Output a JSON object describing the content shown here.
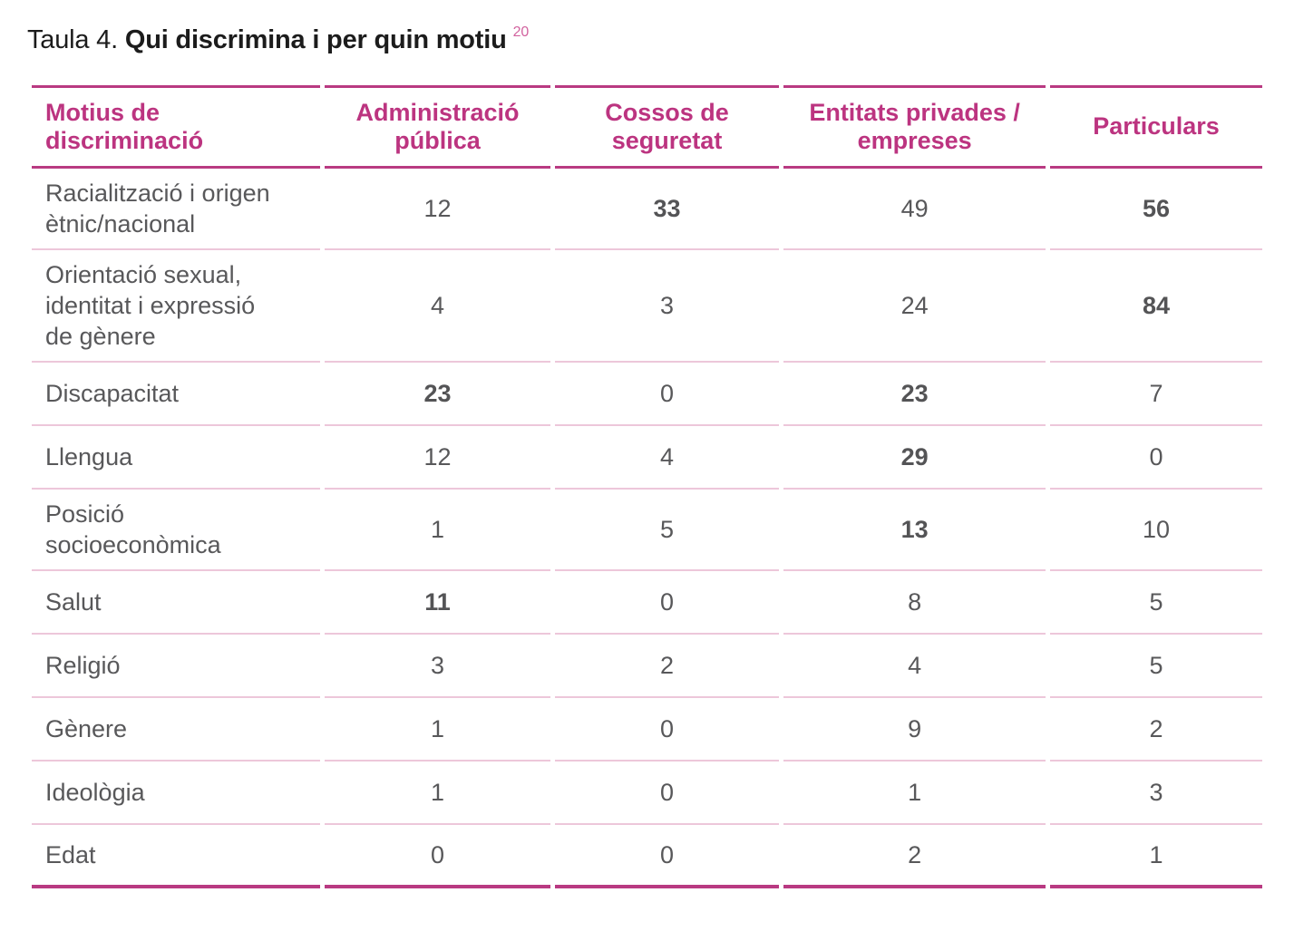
{
  "title": {
    "prefix": "Taula 4.",
    "main": "Qui discrimina i per quin motiu",
    "footnote_ref": "20"
  },
  "colors": {
    "accent_magenta": "#bc3480",
    "border_strong": "#b93a82",
    "border_light": "#edc7da",
    "body_text": "#58585a",
    "title_text": "#1c1c1c",
    "footnote_pink": "#d2639f",
    "background": "#ffffff"
  },
  "table": {
    "header": {
      "motius_label": "Motius de discriminació",
      "columns": [
        "Administració pública",
        "Cossos de seguretat",
        "Entitats privades / empreses",
        "Particulars"
      ]
    },
    "rows": [
      {
        "motiu": "Racialització i origen ètnic/nacional",
        "values": [
          {
            "v": "12",
            "bold": false
          },
          {
            "v": "33",
            "bold": true
          },
          {
            "v": "49",
            "bold": false
          },
          {
            "v": "56",
            "bold": true
          }
        ]
      },
      {
        "motiu": "Orientació sexual, identitat i expressió de gènere",
        "values": [
          {
            "v": "4",
            "bold": false
          },
          {
            "v": "3",
            "bold": false
          },
          {
            "v": "24",
            "bold": false
          },
          {
            "v": "84",
            "bold": true
          }
        ]
      },
      {
        "motiu": "Discapacitat",
        "values": [
          {
            "v": "23",
            "bold": true
          },
          {
            "v": "0",
            "bold": false
          },
          {
            "v": "23",
            "bold": true
          },
          {
            "v": "7",
            "bold": false
          }
        ]
      },
      {
        "motiu": "Llengua",
        "values": [
          {
            "v": "12",
            "bold": false
          },
          {
            "v": "4",
            "bold": false
          },
          {
            "v": "29",
            "bold": true
          },
          {
            "v": "0",
            "bold": false
          }
        ]
      },
      {
        "motiu": "Posició socioeconòmica",
        "values": [
          {
            "v": "1",
            "bold": false
          },
          {
            "v": "5",
            "bold": false
          },
          {
            "v": "13",
            "bold": true
          },
          {
            "v": "10",
            "bold": false
          }
        ]
      },
      {
        "motiu": "Salut",
        "values": [
          {
            "v": "11",
            "bold": true
          },
          {
            "v": "0",
            "bold": false
          },
          {
            "v": "8",
            "bold": false
          },
          {
            "v": "5",
            "bold": false
          }
        ]
      },
      {
        "motiu": "Religió",
        "values": [
          {
            "v": "3",
            "bold": false
          },
          {
            "v": "2",
            "bold": false
          },
          {
            "v": "4",
            "bold": false
          },
          {
            "v": "5",
            "bold": false
          }
        ]
      },
      {
        "motiu": "Gènere",
        "values": [
          {
            "v": "1",
            "bold": false
          },
          {
            "v": "0",
            "bold": false
          },
          {
            "v": "9",
            "bold": false
          },
          {
            "v": "2",
            "bold": false
          }
        ]
      },
      {
        "motiu": "Ideològia",
        "values": [
          {
            "v": "1",
            "bold": false
          },
          {
            "v": "0",
            "bold": false
          },
          {
            "v": "1",
            "bold": false
          },
          {
            "v": "3",
            "bold": false
          }
        ]
      },
      {
        "motiu": "Edat",
        "values": [
          {
            "v": "0",
            "bold": false
          },
          {
            "v": "0",
            "bold": false
          },
          {
            "v": "2",
            "bold": false
          },
          {
            "v": "1",
            "bold": false
          }
        ]
      }
    ]
  }
}
